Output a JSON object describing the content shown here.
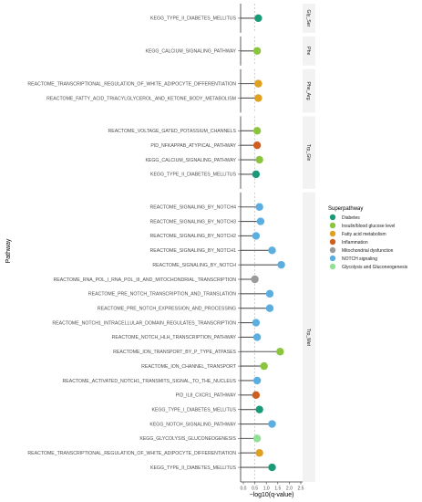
{
  "chart_data": {
    "type": "lollipop",
    "xlabel": "−log10(q-value)",
    "ylabel": "Pathway",
    "xlim": [
      0,
      2.5
    ],
    "xticks": [
      "0.0",
      "0.5",
      "1.0",
      "1.5",
      "2.0",
      "2.5"
    ],
    "reference_line_x": 0.5,
    "legend": {
      "title": "Superpathway",
      "entries": [
        {
          "name": "Diabetes",
          "color": "#1a9a78"
        },
        {
          "name": "Insulin/blood glucose level",
          "color": "#8bc53f"
        },
        {
          "name": "Fatty acid metabolism",
          "color": "#e0a020"
        },
        {
          "name": "Inflammation",
          "color": "#cf5f1f"
        },
        {
          "name": "Mitochondrial dysfunction",
          "color": "#9a9a9a"
        },
        {
          "name": "NOTCH signaling",
          "color": "#5aaee0"
        },
        {
          "name": "Glycolysis and Gluconeogenesis",
          "color": "#92e096"
        }
      ]
    },
    "facets": [
      {
        "label": "Gly_Ser",
        "rows": [
          {
            "pathway": "KEGG_TYPE_II_DIABETES_MELLITUS",
            "value": 0.65,
            "group": "Diabetes"
          }
        ]
      },
      {
        "label": "Phe",
        "rows": [
          {
            "pathway": "KEGG_CALCIUM_SIGNALING_PATHWAY",
            "value": 0.6,
            "group": "Insulin/blood glucose level"
          }
        ]
      },
      {
        "label": "Phe_Arg",
        "rows": [
          {
            "pathway": "REACTOME_TRANSCRIPTIONAL_REGULATION_OF_WHITE_ADIPOCYTE_DIFFERENTIATION",
            "value": 0.65,
            "group": "Fatty acid metabolism"
          },
          {
            "pathway": "REACTOME_FATTY_ACID_TRIACYLGLYCEROL_AND_KETONE_BODY_METABOLISM",
            "value": 0.65,
            "group": "Fatty acid metabolism"
          }
        ]
      },
      {
        "label": "Trp_Gln",
        "rows": [
          {
            "pathway": "REACTOME_VOLTAGE_GATED_POTASSIUM_CHANNELS",
            "value": 0.6,
            "group": "Insulin/blood glucose level"
          },
          {
            "pathway": "PID_NFKAPPAB_ATYPICAL_PATHWAY",
            "value": 0.6,
            "group": "Inflammation"
          },
          {
            "pathway": "KEGG_CALCIUM_SIGNALING_PATHWAY",
            "value": 0.7,
            "group": "Insulin/blood glucose level"
          },
          {
            "pathway": "KEGG_TYPE_II_DIABETES_MELLITUS",
            "value": 0.55,
            "group": "Diabetes"
          }
        ]
      },
      {
        "label": "Trp_Met",
        "rows": [
          {
            "pathway": "REACTOME_SIGNALING_BY_NOTCH4",
            "value": 0.7,
            "group": "NOTCH signaling"
          },
          {
            "pathway": "REACTOME_SIGNALING_BY_NOTCH3",
            "value": 0.75,
            "group": "NOTCH signaling"
          },
          {
            "pathway": "REACTOME_SIGNALING_BY_NOTCH2",
            "value": 0.55,
            "group": "NOTCH signaling"
          },
          {
            "pathway": "REACTOME_SIGNALING_BY_NOTCH1",
            "value": 1.25,
            "group": "NOTCH signaling"
          },
          {
            "pathway": "REACTOME_SIGNALING_BY_NOTCH",
            "value": 1.65,
            "group": "NOTCH signaling"
          },
          {
            "pathway": "REACTOME_RNA_POL_I_RNA_POL_III_AND_MITOCHONDRIAL_TRANSCRIPTION",
            "value": 0.5,
            "group": "Mitochondrial dysfunction"
          },
          {
            "pathway": "REACTOME_PRE_NOTCH_TRANSCRIPTION_AND_TRANSLATION",
            "value": 1.15,
            "group": "NOTCH signaling"
          },
          {
            "pathway": "REACTOME_PRE_NOTCH_EXPRESSION_AND_PROCESSING",
            "value": 1.15,
            "group": "NOTCH signaling"
          },
          {
            "pathway": "REACTOME_NOTCH1_INTRACELLULAR_DOMAIN_REGULATES_TRANSCRIPTION",
            "value": 0.55,
            "group": "NOTCH signaling"
          },
          {
            "pathway": "REACTOME_NOTCH_HLH_TRANSCRIPTION_PATHWAY",
            "value": 0.6,
            "group": "NOTCH signaling"
          },
          {
            "pathway": "REACTOME_ION_TRANSPORT_BY_P_TYPE_ATPASES",
            "value": 1.6,
            "group": "Insulin/blood glucose level"
          },
          {
            "pathway": "REACTOME_ION_CHANNEL_TRANSPORT",
            "value": 0.9,
            "group": "Insulin/blood glucose level"
          },
          {
            "pathway": "REACTOME_ACTIVATED_NOTCH1_TRANSMITS_SIGNAL_TO_THE_NUCLEUS",
            "value": 0.6,
            "group": "NOTCH signaling"
          },
          {
            "pathway": "PID_IL8_CXCR1_PATHWAY",
            "value": 0.55,
            "group": "Inflammation"
          },
          {
            "pathway": "KEGG_TYPE_I_DIABETES_MELLITUS",
            "value": 0.7,
            "group": "Diabetes"
          },
          {
            "pathway": "KEGG_NOTCH_SIGNALING_PATHWAY",
            "value": 1.25,
            "group": "NOTCH signaling"
          },
          {
            "pathway": "KEGG_GLYCOLYSIS_GLUCONEOGENESIS",
            "value": 0.6,
            "group": "Glycolysis and Gluconeogenesis"
          },
          {
            "pathway": "REACTOME_TRANSCRIPTIONAL_REGULATION_OF_WHITE_ADIPOCYTE_DIFFERENTIATION",
            "value": 0.7,
            "group": "Fatty acid metabolism"
          },
          {
            "pathway": "KEGG_TYPE_II_DIABETES_MELLITUS",
            "value": 1.25,
            "group": "Diabetes"
          }
        ]
      }
    ]
  }
}
